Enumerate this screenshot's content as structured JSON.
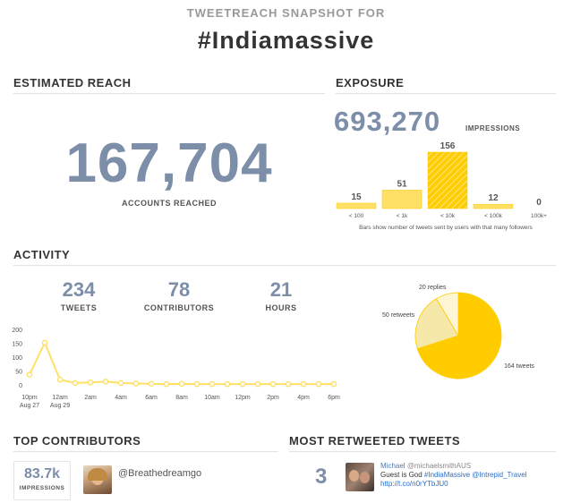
{
  "header": {
    "subtitle": "TWEETREACH SNAPSHOT FOR",
    "title": "#Indiamassive"
  },
  "reach": {
    "heading": "ESTIMATED REACH",
    "value": "167,704",
    "label": "ACCOUNTS REACHED"
  },
  "exposure": {
    "heading": "EXPOSURE",
    "value": "693,270",
    "unit": "IMPRESSIONS",
    "note": "Bars show number of tweets sent by users with that many followers"
  },
  "activity": {
    "heading": "ACTIVITY",
    "stats": [
      {
        "value": "234",
        "label": "TWEETS"
      },
      {
        "value": "78",
        "label": "CONTRIBUTORS"
      },
      {
        "value": "21",
        "label": "HOURS"
      }
    ]
  },
  "top_contributors": {
    "heading": "TOP CONTRIBUTORS",
    "impressions_value": "83.7k",
    "impressions_label": "IMPRESSIONS",
    "handle": "@Breathedreamgo"
  },
  "most_retweeted": {
    "heading": "MOST RETWEETED TWEETS",
    "count": "3",
    "user_name": "Michael",
    "user_handle": "@michaelsmithAUS",
    "text_prefix": "Guest is God ",
    "hashtag": "#IndiaMassive",
    "mention": "@Intrepid_Travel",
    "link": "http://t.co/n0rYTbJU0"
  },
  "colors": {
    "accent": "#ffcc00",
    "accent_light": "#ffe066",
    "number": "#7d8ea9",
    "slice_light": "#f5e8a8"
  },
  "chart_data": [
    {
      "type": "bar",
      "categories": [
        "< 100",
        "< 1k",
        "< 10k",
        "< 100k",
        "100k+"
      ],
      "values": [
        15,
        51,
        156,
        12,
        0
      ]
    },
    {
      "type": "line",
      "x_tick_labels": [
        "10pm",
        "12am",
        "2am",
        "4am",
        "6am",
        "8am",
        "10am",
        "12pm",
        "2pm",
        "4pm",
        "6pm"
      ],
      "x_sub_labels": [
        "Aug 27",
        "Aug 29"
      ],
      "y_ticks": [
        0,
        50,
        100,
        150,
        200
      ],
      "ylim": [
        0,
        200
      ],
      "values": [
        40,
        155,
        22,
        10,
        12,
        15,
        10,
        8,
        7,
        6,
        7,
        6,
        6,
        6,
        6,
        6,
        6,
        6,
        6,
        6,
        6
      ]
    },
    {
      "type": "pie",
      "slices": [
        {
          "label": "164 tweets",
          "value": 164
        },
        {
          "label": "50 retweets",
          "value": 50
        },
        {
          "label": "20 replies",
          "value": 20
        }
      ]
    }
  ]
}
